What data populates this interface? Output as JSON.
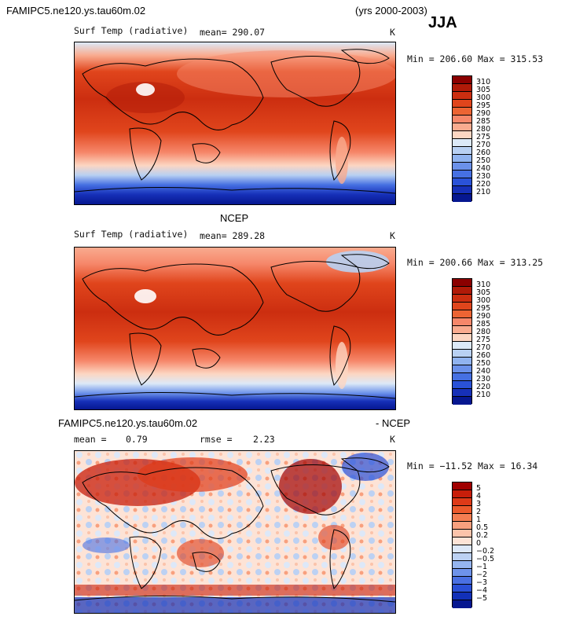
{
  "header": {
    "model_name": "FAMIPC5.ne120.ys.tau60m.02",
    "years": "(yrs 2000-2003)",
    "season": "JJA"
  },
  "panels": [
    {
      "id": "model",
      "field_label": "Surf Temp (radiative)",
      "stat_text": "mean= 290.07",
      "units": "K",
      "minmax_text": "Min = 206.60 Max = 315.53",
      "levels": [
        "310",
        "305",
        "300",
        "295",
        "290",
        "285",
        "280",
        "275",
        "270",
        "260",
        "250",
        "240",
        "230",
        "220",
        "210"
      ],
      "colors": [
        "#8b0000",
        "#b01a08",
        "#cc2e10",
        "#e0451c",
        "#ec6433",
        "#f6876a",
        "#f9ab8f",
        "#fcd6c2",
        "#dce9f7",
        "#b8d0f2",
        "#90b3ef",
        "#6b91ea",
        "#4670e2",
        "#2a52d8",
        "#1630b8",
        "#061790"
      ]
    },
    {
      "id": "ncep",
      "title": "NCEP",
      "field_label": "Surf Temp (radiative)",
      "stat_text": "mean= 289.28",
      "units": "K",
      "minmax_text": "Min = 200.66 Max = 313.25",
      "levels": [
        "310",
        "305",
        "300",
        "295",
        "290",
        "285",
        "280",
        "275",
        "270",
        "260",
        "250",
        "240",
        "230",
        "220",
        "210"
      ],
      "colors": [
        "#8b0000",
        "#b01a08",
        "#cc2e10",
        "#e0451c",
        "#ec6433",
        "#f6876a",
        "#f9ab8f",
        "#fcd6c2",
        "#dce9f7",
        "#b8d0f2",
        "#90b3ef",
        "#6b91ea",
        "#4670e2",
        "#2a52d8",
        "#1630b8",
        "#061790"
      ]
    },
    {
      "id": "diff",
      "title_left": "FAMIPC5.ne120.ys.tau60m.02",
      "title_right": "- NCEP",
      "mean_label": "mean =",
      "mean_value": "0.79",
      "rmse_label": "rmse =",
      "rmse_value": "2.23",
      "units": "K",
      "minmax_text": "Min = −11.52 Max =  16.34",
      "levels": [
        "5",
        "4",
        "3",
        "2",
        "1",
        "0.5",
        "0.2",
        "0",
        "−0.2",
        "−0.5",
        "−1",
        "−2",
        "−3",
        "−4",
        "−5"
      ],
      "colors": [
        "#a00000",
        "#c81e0a",
        "#de3a18",
        "#ec5a2c",
        "#f47e52",
        "#f8a07e",
        "#fbc3aa",
        "#fde3d6",
        "#dde8f8",
        "#bcd1f3",
        "#95b5ef",
        "#6e93ea",
        "#4a70e2",
        "#2a4fd6",
        "#1230b8",
        "#061790"
      ]
    }
  ]
}
